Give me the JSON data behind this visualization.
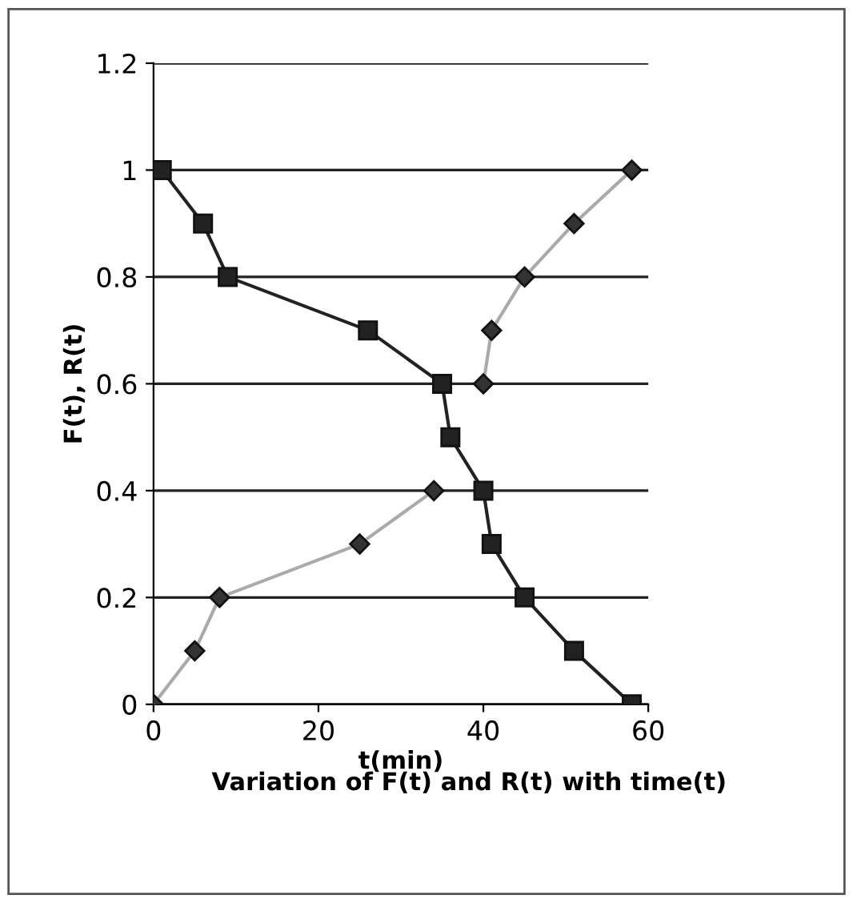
{
  "chart_data": {
    "type": "line",
    "title": "Variation of F(t) and R(t) with time(t)",
    "xlabel": "t(min)",
    "ylabel": "F(t), R(t)",
    "series": [
      {
        "color": "#222222",
        "marker": "square",
        "x": [
          1,
          6,
          9,
          26,
          35,
          36,
          40,
          41,
          45,
          51,
          58
        ],
        "values": [
          1,
          0.9,
          0.8,
          0.7,
          0.6,
          0.5,
          0.4,
          0.3,
          0.2,
          0.1,
          0
        ]
      },
      {
        "color": "#aaaaaa",
        "marker": "diamond",
        "x": [
          0,
          5,
          8,
          25,
          34,
          36,
          40,
          41,
          45,
          51,
          58
        ],
        "values": [
          0,
          0.1,
          0.2,
          0.3,
          0.4,
          null,
          0.6,
          0.7,
          0.8,
          0.9,
          1
        ]
      }
    ],
    "xlim": [
      0,
      60
    ],
    "xticks": [
      0,
      20,
      40,
      60
    ],
    "ylim": [
      0,
      1.2
    ],
    "yticks": [
      0,
      0.2,
      0.4,
      0.6,
      0.8,
      1,
      1.2
    ],
    "grid": "y",
    "legend": false
  }
}
